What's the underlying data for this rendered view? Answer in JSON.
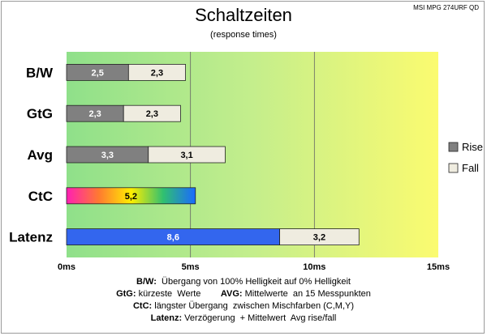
{
  "header": {
    "title": "Schaltzeiten",
    "subtitle": "(response times)",
    "model": "MSI MPG 274URF QD"
  },
  "chart_data": {
    "type": "bar",
    "orientation": "horizontal",
    "stacked": true,
    "categories": [
      "B/W",
      "GtG",
      "Avg",
      "CtC",
      "Latenz"
    ],
    "series": [
      {
        "name": "Rise",
        "color": "#808080",
        "values": [
          2.5,
          2.3,
          3.3,
          5.2,
          8.6
        ],
        "labels": [
          "2,5",
          "2,3",
          "3,3",
          "5,2",
          "8,6"
        ]
      },
      {
        "name": "Fall",
        "color": "#efece0",
        "values": [
          2.3,
          2.3,
          3.1,
          null,
          3.2
        ],
        "labels": [
          "2,3",
          "2,3",
          "3,1",
          "",
          "3,2"
        ]
      }
    ],
    "special_colors": {
      "CtC": "gradient-magenta-yellow-blue",
      "Latenz": "#3366ee"
    },
    "xlim": [
      0,
      15
    ],
    "xticks": [
      0,
      5,
      10,
      15
    ],
    "xtick_labels": [
      "0ms",
      "5ms",
      "10ms",
      "15ms"
    ],
    "grid": "vertical",
    "legend": "right",
    "legend_entries": [
      "Rise",
      "Fall"
    ],
    "background": "gradient-green-to-yellow"
  },
  "footer": {
    "lines": [
      {
        "key": "B/W:",
        "text": "  Übergang von 100% Helligkeit auf 0% Helligkeit"
      },
      {
        "key": "GtG:",
        "text": " kürzeste  Werte        ",
        "key2": "AVG:",
        "text2": " Mittelwerte  an 15 Messpunkten"
      },
      {
        "key": "CtC:",
        "text": " längster Übergang  zwischen Mischfarben (C,M,Y)"
      },
      {
        "key": "Latenz:",
        "text": " Verzögerung  + Mittelwert  Avg rise/fall"
      }
    ]
  }
}
